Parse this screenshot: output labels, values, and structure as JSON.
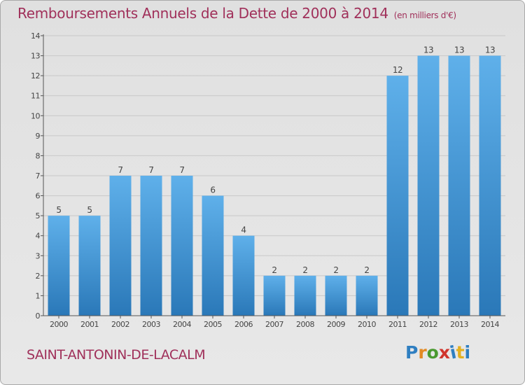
{
  "title": "Remboursements Annuels de la Dette de 2000 à 2014",
  "unit": "(en milliers d'€)",
  "place": "SAINT-ANTONIN-DE-LACALM",
  "logo": {
    "text": "Proxiti",
    "colors": [
      "#2f7fc1",
      "#e38a24",
      "#4a9a30",
      "#d0342c",
      "#2f7fc1",
      "#e3b020",
      "#2f7fc1"
    ]
  },
  "colors": {
    "title": "#a0305a",
    "bar_light": "#5fb0ea",
    "bar_dark": "#2a78b8",
    "axis": "#555555",
    "grid": "#c8c8c8"
  },
  "chart_data": {
    "type": "bar",
    "categories": [
      "2000",
      "2001",
      "2002",
      "2003",
      "2004",
      "2005",
      "2006",
      "2007",
      "2008",
      "2009",
      "2010",
      "2011",
      "2012",
      "2013",
      "2014"
    ],
    "values": [
      5,
      5,
      7,
      7,
      7,
      6,
      4,
      2,
      2,
      2,
      2,
      12,
      13,
      13,
      13
    ],
    "data_labels": [
      "5",
      "5",
      "7",
      "7",
      "7",
      "6",
      "4",
      "2",
      "2",
      "2",
      "2",
      "12",
      "13",
      "13",
      "13"
    ],
    "yticks": [
      "0",
      "1",
      "2",
      "3",
      "4",
      "5",
      "6",
      "7",
      "8",
      "9",
      "10",
      "11",
      "12",
      "13",
      "14"
    ],
    "ylim": [
      0,
      14
    ],
    "grid": true
  }
}
